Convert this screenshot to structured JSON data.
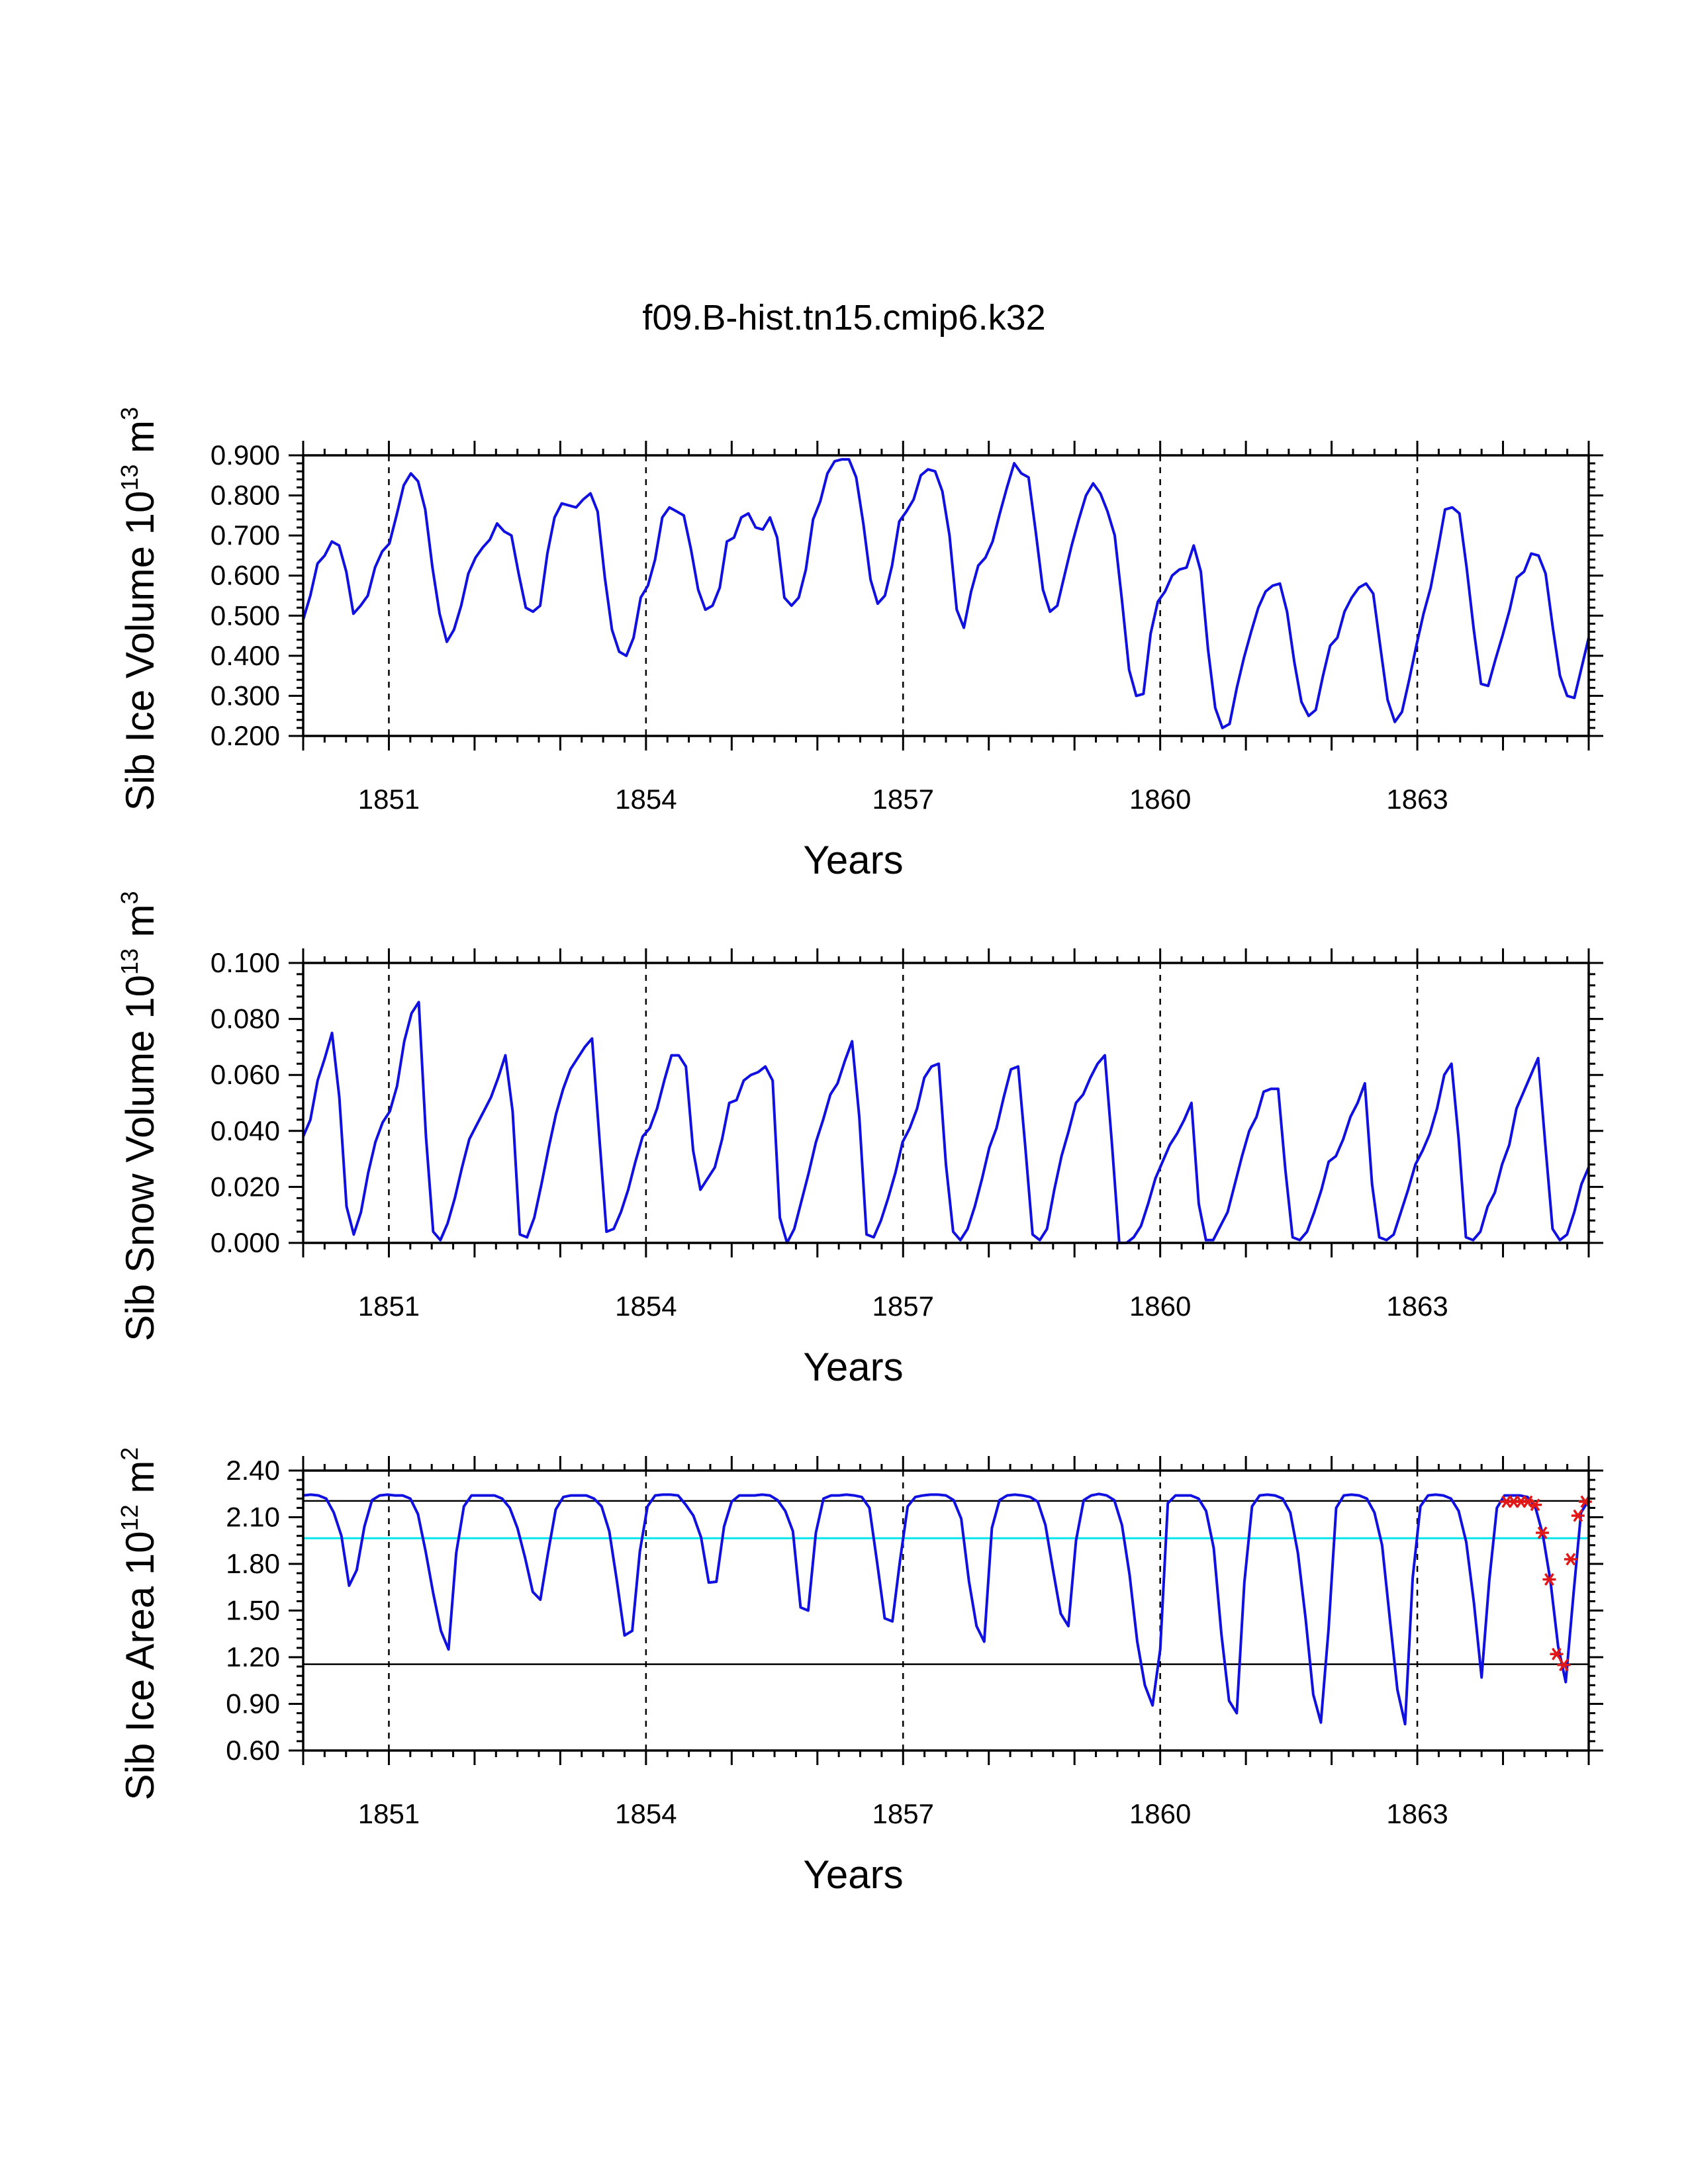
{
  "title": "f09.B-hist.tn15.cmip6.k32",
  "chart_data": [
    {
      "type": "line",
      "name": "ice-volume",
      "ylabel": "Sib Ice Volume",
      "yunit_base": "10",
      "yunit_exp": "13",
      "yunit_m": "m",
      "yunit_mexp": "3",
      "xlabel": "Years",
      "xlim": [
        1850,
        1865
      ],
      "ylim": [
        0.2,
        0.9
      ],
      "yticks": [
        "0.200",
        "0.300",
        "0.400",
        "0.500",
        "0.600",
        "0.700",
        "0.800",
        "0.900"
      ],
      "xticks": [
        "1851",
        "1854",
        "1857",
        "1860",
        "1863"
      ],
      "vgrid": [
        1851,
        1854,
        1857,
        1860,
        1863
      ],
      "series": [
        {
          "name": "Sib Ice Volume",
          "color": "#1010e0",
          "values": [
            0.49,
            0.55,
            0.63,
            0.65,
            0.685,
            0.675,
            0.61,
            0.505,
            0.525,
            0.55,
            0.62,
            0.66,
            0.68,
            0.75,
            0.825,
            0.855,
            0.835,
            0.765,
            0.62,
            0.505,
            0.435,
            0.465,
            0.525,
            0.605,
            0.645,
            0.67,
            0.69,
            0.73,
            0.71,
            0.7,
            0.605,
            0.52,
            0.51,
            0.525,
            0.655,
            0.745,
            0.78,
            0.775,
            0.77,
            0.79,
            0.805,
            0.76,
            0.595,
            0.465,
            0.41,
            0.4,
            0.445,
            0.545,
            0.575,
            0.64,
            0.745,
            0.77,
            0.76,
            0.75,
            0.665,
            0.565,
            0.515,
            0.525,
            0.57,
            0.685,
            0.695,
            0.745,
            0.755,
            0.72,
            0.715,
            0.745,
            0.695,
            0.545,
            0.525,
            0.545,
            0.615,
            0.74,
            0.785,
            0.855,
            0.885,
            0.89,
            0.89,
            0.845,
            0.73,
            0.59,
            0.53,
            0.55,
            0.625,
            0.735,
            0.76,
            0.79,
            0.85,
            0.865,
            0.86,
            0.81,
            0.7,
            0.515,
            0.47,
            0.56,
            0.625,
            0.645,
            0.685,
            0.755,
            0.82,
            0.88,
            0.855,
            0.845,
            0.71,
            0.565,
            0.51,
            0.525,
            0.6,
            0.675,
            0.74,
            0.8,
            0.83,
            0.805,
            0.76,
            0.7,
            0.54,
            0.365,
            0.3,
            0.305,
            0.455,
            0.535,
            0.56,
            0.6,
            0.615,
            0.62,
            0.675,
            0.61,
            0.415,
            0.27,
            0.22,
            0.23,
            0.32,
            0.395,
            0.46,
            0.52,
            0.56,
            0.575,
            0.58,
            0.51,
            0.385,
            0.285,
            0.25,
            0.265,
            0.35,
            0.425,
            0.445,
            0.51,
            0.545,
            0.57,
            0.58,
            0.555,
            0.42,
            0.29,
            0.235,
            0.26,
            0.34,
            0.425,
            0.505,
            0.57,
            0.665,
            0.765,
            0.77,
            0.755,
            0.62,
            0.465,
            0.33,
            0.325,
            0.39,
            0.45,
            0.515,
            0.595,
            0.61,
            0.655,
            0.65,
            0.605,
            0.47,
            0.35,
            0.3,
            0.295,
            0.37,
            0.445
          ]
        }
      ]
    },
    {
      "type": "line",
      "name": "snow-volume",
      "ylabel": "Sib Snow Volume",
      "yunit_base": "10",
      "yunit_exp": "13",
      "yunit_m": "m",
      "yunit_mexp": "3",
      "xlabel": "Years",
      "xlim": [
        1850,
        1865
      ],
      "ylim": [
        0.0,
        0.1
      ],
      "yticks": [
        "0.000",
        "0.020",
        "0.040",
        "0.060",
        "0.080",
        "0.100"
      ],
      "xticks": [
        "1851",
        "1854",
        "1857",
        "1860",
        "1863"
      ],
      "vgrid": [
        1851,
        1854,
        1857,
        1860,
        1863
      ],
      "series": [
        {
          "name": "Sib Snow Volume",
          "color": "#1010e0",
          "values": [
            0.038,
            0.044,
            0.058,
            0.066,
            0.075,
            0.052,
            0.013,
            0.003,
            0.011,
            0.025,
            0.036,
            0.043,
            0.047,
            0.056,
            0.072,
            0.082,
            0.086,
            0.038,
            0.004,
            0.001,
            0.007,
            0.016,
            0.027,
            0.037,
            0.042,
            0.047,
            0.052,
            0.059,
            0.067,
            0.047,
            0.003,
            0.002,
            0.009,
            0.021,
            0.034,
            0.046,
            0.055,
            0.062,
            0.066,
            0.07,
            0.073,
            0.038,
            0.004,
            0.005,
            0.011,
            0.019,
            0.029,
            0.038,
            0.041,
            0.048,
            0.058,
            0.067,
            0.067,
            0.063,
            0.033,
            0.019,
            0.023,
            0.027,
            0.037,
            0.05,
            0.051,
            0.058,
            0.06,
            0.061,
            0.063,
            0.058,
            0.009,
            0.0,
            0.005,
            0.015,
            0.025,
            0.036,
            0.044,
            0.053,
            0.057,
            0.065,
            0.072,
            0.045,
            0.003,
            0.002,
            0.008,
            0.016,
            0.025,
            0.036,
            0.041,
            0.048,
            0.059,
            0.063,
            0.064,
            0.028,
            0.004,
            0.001,
            0.005,
            0.013,
            0.023,
            0.034,
            0.041,
            0.052,
            0.062,
            0.063,
            0.034,
            0.003,
            0.001,
            0.005,
            0.019,
            0.031,
            0.04,
            0.05,
            0.053,
            0.059,
            0.064,
            0.067,
            0.035,
            0.0,
            0.0,
            0.002,
            0.006,
            0.014,
            0.023,
            0.029,
            0.035,
            0.039,
            0.044,
            0.05,
            0.014,
            0.001,
            0.001,
            0.006,
            0.011,
            0.021,
            0.031,
            0.04,
            0.045,
            0.054,
            0.055,
            0.055,
            0.026,
            0.002,
            0.001,
            0.004,
            0.011,
            0.019,
            0.029,
            0.031,
            0.037,
            0.045,
            0.05,
            0.057,
            0.021,
            0.002,
            0.001,
            0.003,
            0.011,
            0.019,
            0.028,
            0.033,
            0.039,
            0.048,
            0.06,
            0.064,
            0.037,
            0.002,
            0.001,
            0.004,
            0.013,
            0.018,
            0.028,
            0.035,
            0.048,
            0.054,
            0.06,
            0.066,
            0.035,
            0.005,
            0.001,
            0.003,
            0.011,
            0.021,
            0.027
          ]
        }
      ]
    },
    {
      "type": "line",
      "name": "ice-area",
      "ylabel": "Sib Ice Area",
      "yunit_base": "10",
      "yunit_exp": "12",
      "yunit_m": "m",
      "yunit_mexp": "2",
      "xlabel": "Years",
      "xlim": [
        1850,
        1865
      ],
      "ylim": [
        0.6,
        2.4
      ],
      "yticks": [
        "0.60",
        "0.90",
        "1.20",
        "1.50",
        "1.80",
        "2.10",
        "2.40"
      ],
      "xticks": [
        "1851",
        "1854",
        "1857",
        "1860",
        "1863"
      ],
      "vgrid": [
        1851,
        1854,
        1857,
        1860,
        1863
      ],
      "reference_lines": [
        {
          "value": 2.205,
          "color": "#000000"
        },
        {
          "value": 1.965,
          "color": "#00e5ee"
        },
        {
          "value": 1.155,
          "color": "#000000"
        }
      ],
      "series": [
        {
          "name": "Sib Ice Area",
          "color": "#1010e0",
          "values": [
            2.24,
            2.245,
            2.24,
            2.22,
            2.13,
            1.98,
            1.66,
            1.76,
            2.04,
            2.21,
            2.24,
            2.245,
            2.24,
            2.24,
            2.22,
            2.12,
            1.88,
            1.61,
            1.37,
            1.25,
            1.87,
            2.17,
            2.24,
            2.24,
            2.24,
            2.24,
            2.22,
            2.16,
            2.03,
            1.84,
            1.62,
            1.57,
            1.87,
            2.15,
            2.23,
            2.24,
            2.24,
            2.24,
            2.22,
            2.17,
            2.01,
            1.69,
            1.34,
            1.37,
            1.88,
            2.17,
            2.24,
            2.245,
            2.245,
            2.24,
            2.18,
            2.11,
            1.97,
            1.68,
            1.685,
            2.04,
            2.2,
            2.24,
            2.24,
            2.24,
            2.245,
            2.24,
            2.21,
            2.14,
            2.01,
            1.52,
            1.5,
            2.0,
            2.22,
            2.24,
            2.24,
            2.245,
            2.24,
            2.23,
            2.16,
            1.81,
            1.45,
            1.43,
            1.82,
            2.17,
            2.23,
            2.24,
            2.245,
            2.245,
            2.24,
            2.21,
            2.09,
            1.69,
            1.4,
            1.3,
            2.03,
            2.21,
            2.24,
            2.245,
            2.24,
            2.23,
            2.2,
            2.05,
            1.76,
            1.48,
            1.4,
            1.95,
            2.21,
            2.24,
            2.25,
            2.24,
            2.21,
            2.05,
            1.73,
            1.3,
            1.02,
            0.89,
            1.25,
            2.19,
            2.24,
            2.24,
            2.24,
            2.22,
            2.14,
            1.9,
            1.35,
            0.92,
            0.84,
            1.68,
            2.17,
            2.24,
            2.245,
            2.24,
            2.22,
            2.13,
            1.87,
            1.45,
            0.96,
            0.78,
            1.38,
            2.16,
            2.24,
            2.245,
            2.24,
            2.22,
            2.13,
            1.92,
            1.45,
            0.99,
            0.77,
            1.71,
            2.17,
            2.24,
            2.245,
            2.24,
            2.22,
            2.14,
            1.94,
            1.55,
            1.07,
            1.69,
            2.16,
            2.24,
            2.24,
            2.24,
            2.23,
            2.17,
            1.99,
            1.69,
            1.27,
            1.04,
            1.6,
            2.13,
            2.21
          ]
        }
      ],
      "observations": [
        {
          "x": 1864.04,
          "y": 2.2
        },
        {
          "x": 1864.125,
          "y": 2.2
        },
        {
          "x": 1864.21,
          "y": 2.2
        },
        {
          "x": 1864.29,
          "y": 2.2
        },
        {
          "x": 1864.375,
          "y": 2.18
        },
        {
          "x": 1864.46,
          "y": 2.0
        },
        {
          "x": 1864.54,
          "y": 1.7
        },
        {
          "x": 1864.625,
          "y": 1.22
        },
        {
          "x": 1864.71,
          "y": 1.15
        },
        {
          "x": 1864.79,
          "y": 1.83
        },
        {
          "x": 1864.875,
          "y": 2.11
        },
        {
          "x": 1864.96,
          "y": 2.2
        }
      ]
    }
  ]
}
